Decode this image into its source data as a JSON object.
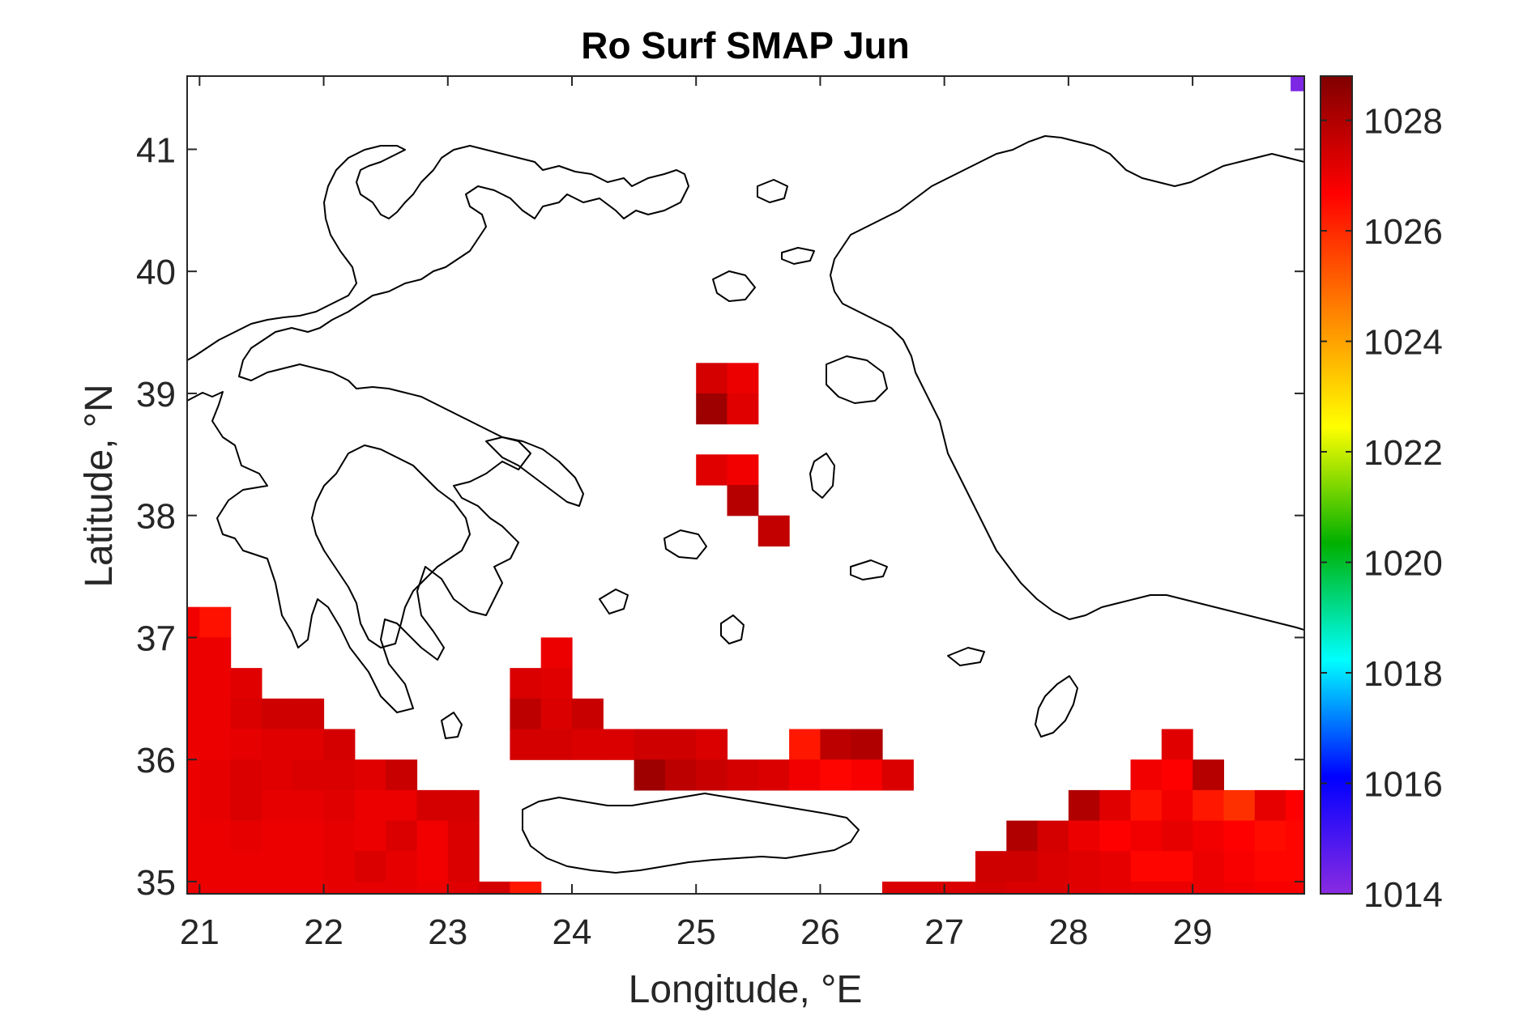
{
  "chart_data": {
    "type": "heatmap",
    "title": "Ro Surf SMAP Jun",
    "xlabel": "Longitude, °E",
    "ylabel": "Latitude, °N",
    "xlim": [
      20.9,
      29.9
    ],
    "ylim": [
      34.9,
      41.6
    ],
    "xticks": [
      21,
      22,
      23,
      24,
      25,
      26,
      27,
      28,
      29
    ],
    "yticks": [
      35,
      36,
      37,
      38,
      39,
      40,
      41
    ],
    "cell_size_deg": 0.25,
    "colorbar": {
      "range": [
        1014,
        1028.8
      ],
      "ticks": [
        1014,
        1016,
        1018,
        1020,
        1022,
        1024,
        1026,
        1028
      ],
      "colormap": "jet-like",
      "colors": [
        "#8a2be2",
        "#0000ff",
        "#00ffff",
        "#00b000",
        "#ffff00",
        "#ff8000",
        "#ff0000",
        "#800000"
      ]
    },
    "grid": false,
    "cells": [
      {
        "lon": 20.875,
        "lat": 37.125,
        "value": 1026.9
      },
      {
        "lon": 21.125,
        "lat": 37.125,
        "value": 1026.4
      },
      {
        "lon": 20.875,
        "lat": 36.875,
        "value": 1027.0
      },
      {
        "lon": 21.125,
        "lat": 36.875,
        "value": 1027.0
      },
      {
        "lon": 20.875,
        "lat": 36.625,
        "value": 1027.0
      },
      {
        "lon": 21.125,
        "lat": 36.625,
        "value": 1027.0
      },
      {
        "lon": 21.375,
        "lat": 36.625,
        "value": 1027.2
      },
      {
        "lon": 20.875,
        "lat": 36.375,
        "value": 1027.0
      },
      {
        "lon": 21.125,
        "lat": 36.375,
        "value": 1027.0
      },
      {
        "lon": 21.375,
        "lat": 36.375,
        "value": 1027.3
      },
      {
        "lon": 21.625,
        "lat": 36.375,
        "value": 1027.5
      },
      {
        "lon": 21.875,
        "lat": 36.375,
        "value": 1027.5
      },
      {
        "lon": 20.875,
        "lat": 36.125,
        "value": 1027.0
      },
      {
        "lon": 21.125,
        "lat": 36.125,
        "value": 1027.0
      },
      {
        "lon": 21.375,
        "lat": 36.125,
        "value": 1027.1
      },
      {
        "lon": 21.625,
        "lat": 36.125,
        "value": 1027.2
      },
      {
        "lon": 21.875,
        "lat": 36.125,
        "value": 1027.2
      },
      {
        "lon": 22.125,
        "lat": 36.125,
        "value": 1027.4
      },
      {
        "lon": 20.875,
        "lat": 35.875,
        "value": 1027.0
      },
      {
        "lon": 21.125,
        "lat": 35.875,
        "value": 1027.1
      },
      {
        "lon": 21.375,
        "lat": 35.875,
        "value": 1027.3
      },
      {
        "lon": 21.625,
        "lat": 35.875,
        "value": 1027.2
      },
      {
        "lon": 21.875,
        "lat": 35.875,
        "value": 1027.3
      },
      {
        "lon": 22.125,
        "lat": 35.875,
        "value": 1027.3
      },
      {
        "lon": 22.375,
        "lat": 35.875,
        "value": 1027.2
      },
      {
        "lon": 22.625,
        "lat": 35.875,
        "value": 1027.6
      },
      {
        "lon": 20.875,
        "lat": 35.625,
        "value": 1027.0
      },
      {
        "lon": 21.125,
        "lat": 35.625,
        "value": 1027.1
      },
      {
        "lon": 21.375,
        "lat": 35.625,
        "value": 1027.3
      },
      {
        "lon": 21.625,
        "lat": 35.625,
        "value": 1027.1
      },
      {
        "lon": 21.875,
        "lat": 35.625,
        "value": 1027.1
      },
      {
        "lon": 22.125,
        "lat": 35.625,
        "value": 1027.2
      },
      {
        "lon": 22.375,
        "lat": 35.625,
        "value": 1027.0
      },
      {
        "lon": 22.625,
        "lat": 35.625,
        "value": 1027.0
      },
      {
        "lon": 22.875,
        "lat": 35.625,
        "value": 1027.4
      },
      {
        "lon": 23.125,
        "lat": 35.625,
        "value": 1027.4
      },
      {
        "lon": 20.875,
        "lat": 35.375,
        "value": 1027.0
      },
      {
        "lon": 21.125,
        "lat": 35.375,
        "value": 1027.0
      },
      {
        "lon": 21.375,
        "lat": 35.375,
        "value": 1027.1
      },
      {
        "lon": 21.625,
        "lat": 35.375,
        "value": 1027.0
      },
      {
        "lon": 21.875,
        "lat": 35.375,
        "value": 1027.0
      },
      {
        "lon": 22.125,
        "lat": 35.375,
        "value": 1027.1
      },
      {
        "lon": 22.375,
        "lat": 35.375,
        "value": 1027.0
      },
      {
        "lon": 22.625,
        "lat": 35.375,
        "value": 1027.3
      },
      {
        "lon": 22.875,
        "lat": 35.375,
        "value": 1026.9
      },
      {
        "lon": 23.125,
        "lat": 35.375,
        "value": 1027.3
      },
      {
        "lon": 20.875,
        "lat": 35.125,
        "value": 1027.0
      },
      {
        "lon": 21.125,
        "lat": 35.125,
        "value": 1027.0
      },
      {
        "lon": 21.375,
        "lat": 35.125,
        "value": 1027.0
      },
      {
        "lon": 21.625,
        "lat": 35.125,
        "value": 1027.0
      },
      {
        "lon": 21.875,
        "lat": 35.125,
        "value": 1027.0
      },
      {
        "lon": 22.125,
        "lat": 35.125,
        "value": 1027.1
      },
      {
        "lon": 22.375,
        "lat": 35.125,
        "value": 1027.3
      },
      {
        "lon": 22.625,
        "lat": 35.125,
        "value": 1027.1
      },
      {
        "lon": 22.875,
        "lat": 35.125,
        "value": 1026.9
      },
      {
        "lon": 23.125,
        "lat": 35.125,
        "value": 1027.3
      },
      {
        "lon": 20.875,
        "lat": 34.875,
        "value": 1027.0
      },
      {
        "lon": 21.125,
        "lat": 34.875,
        "value": 1027.0
      },
      {
        "lon": 21.375,
        "lat": 34.875,
        "value": 1027.0
      },
      {
        "lon": 21.625,
        "lat": 34.875,
        "value": 1027.0
      },
      {
        "lon": 21.875,
        "lat": 34.875,
        "value": 1027.0
      },
      {
        "lon": 22.125,
        "lat": 34.875,
        "value": 1027.1
      },
      {
        "lon": 22.375,
        "lat": 34.875,
        "value": 1027.1
      },
      {
        "lon": 22.625,
        "lat": 34.875,
        "value": 1027.1
      },
      {
        "lon": 22.875,
        "lat": 34.875,
        "value": 1027.0
      },
      {
        "lon": 23.125,
        "lat": 34.875,
        "value": 1027.2
      },
      {
        "lon": 23.375,
        "lat": 34.875,
        "value": 1027.4
      },
      {
        "lon": 23.625,
        "lat": 34.875,
        "value": 1026.3
      },
      {
        "lon": 25.125,
        "lat": 39.125,
        "value": 1027.4
      },
      {
        "lon": 25.375,
        "lat": 39.125,
        "value": 1027.0
      },
      {
        "lon": 25.125,
        "lat": 38.875,
        "value": 1028.3
      },
      {
        "lon": 25.375,
        "lat": 38.875,
        "value": 1027.2
      },
      {
        "lon": 25.125,
        "lat": 38.375,
        "value": 1027.2
      },
      {
        "lon": 25.375,
        "lat": 38.375,
        "value": 1026.9
      },
      {
        "lon": 25.375,
        "lat": 38.125,
        "value": 1027.9
      },
      {
        "lon": 25.625,
        "lat": 37.875,
        "value": 1027.7
      },
      {
        "lon": 23.875,
        "lat": 36.875,
        "value": 1027.0
      },
      {
        "lon": 23.625,
        "lat": 36.625,
        "value": 1027.3
      },
      {
        "lon": 23.875,
        "lat": 36.625,
        "value": 1027.2
      },
      {
        "lon": 23.625,
        "lat": 36.375,
        "value": 1027.8
      },
      {
        "lon": 23.875,
        "lat": 36.375,
        "value": 1027.3
      },
      {
        "lon": 24.125,
        "lat": 36.375,
        "value": 1027.6
      },
      {
        "lon": 23.625,
        "lat": 36.125,
        "value": 1027.4
      },
      {
        "lon": 23.875,
        "lat": 36.125,
        "value": 1027.4
      },
      {
        "lon": 24.125,
        "lat": 36.125,
        "value": 1027.3
      },
      {
        "lon": 24.375,
        "lat": 36.125,
        "value": 1027.3
      },
      {
        "lon": 24.625,
        "lat": 36.125,
        "value": 1027.5
      },
      {
        "lon": 24.875,
        "lat": 36.125,
        "value": 1027.5
      },
      {
        "lon": 25.125,
        "lat": 36.125,
        "value": 1027.3
      },
      {
        "lon": 25.875,
        "lat": 36.125,
        "value": 1026.3
      },
      {
        "lon": 26.125,
        "lat": 36.125,
        "value": 1027.8
      },
      {
        "lon": 26.375,
        "lat": 36.125,
        "value": 1028.0
      },
      {
        "lon": 24.625,
        "lat": 35.875,
        "value": 1028.3
      },
      {
        "lon": 24.875,
        "lat": 35.875,
        "value": 1027.8
      },
      {
        "lon": 25.125,
        "lat": 35.875,
        "value": 1027.6
      },
      {
        "lon": 25.375,
        "lat": 35.875,
        "value": 1027.4
      },
      {
        "lon": 25.625,
        "lat": 35.875,
        "value": 1027.3
      },
      {
        "lon": 25.875,
        "lat": 35.875,
        "value": 1026.9
      },
      {
        "lon": 26.125,
        "lat": 35.875,
        "value": 1026.6
      },
      {
        "lon": 26.375,
        "lat": 35.875,
        "value": 1026.8
      },
      {
        "lon": 26.625,
        "lat": 35.875,
        "value": 1027.3
      },
      {
        "lon": 28.875,
        "lat": 36.125,
        "value": 1027.2
      },
      {
        "lon": 28.625,
        "lat": 35.875,
        "value": 1026.9
      },
      {
        "lon": 28.875,
        "lat": 35.875,
        "value": 1026.7
      },
      {
        "lon": 29.125,
        "lat": 35.875,
        "value": 1027.9
      },
      {
        "lon": 28.125,
        "lat": 35.625,
        "value": 1028.0
      },
      {
        "lon": 28.375,
        "lat": 35.625,
        "value": 1027.2
      },
      {
        "lon": 28.625,
        "lat": 35.625,
        "value": 1026.4
      },
      {
        "lon": 28.875,
        "lat": 35.625,
        "value": 1026.9
      },
      {
        "lon": 29.125,
        "lat": 35.625,
        "value": 1026.3
      },
      {
        "lon": 29.375,
        "lat": 35.625,
        "value": 1025.9
      },
      {
        "lon": 29.625,
        "lat": 35.625,
        "value": 1027.1
      },
      {
        "lon": 29.875,
        "lat": 35.625,
        "value": 1026.7
      },
      {
        "lon": 27.625,
        "lat": 35.375,
        "value": 1028.0
      },
      {
        "lon": 27.875,
        "lat": 35.375,
        "value": 1027.4
      },
      {
        "lon": 28.125,
        "lat": 35.375,
        "value": 1027.0
      },
      {
        "lon": 28.375,
        "lat": 35.375,
        "value": 1026.7
      },
      {
        "lon": 28.625,
        "lat": 35.375,
        "value": 1026.9
      },
      {
        "lon": 28.875,
        "lat": 35.375,
        "value": 1027.1
      },
      {
        "lon": 29.125,
        "lat": 35.375,
        "value": 1026.9
      },
      {
        "lon": 29.375,
        "lat": 35.375,
        "value": 1026.7
      },
      {
        "lon": 29.625,
        "lat": 35.375,
        "value": 1026.5
      },
      {
        "lon": 29.875,
        "lat": 35.375,
        "value": 1026.6
      },
      {
        "lon": 27.375,
        "lat": 35.125,
        "value": 1027.5
      },
      {
        "lon": 27.625,
        "lat": 35.125,
        "value": 1027.5
      },
      {
        "lon": 27.875,
        "lat": 35.125,
        "value": 1027.3
      },
      {
        "lon": 28.125,
        "lat": 35.125,
        "value": 1027.2
      },
      {
        "lon": 28.375,
        "lat": 35.125,
        "value": 1027.1
      },
      {
        "lon": 28.625,
        "lat": 35.125,
        "value": 1026.6
      },
      {
        "lon": 28.875,
        "lat": 35.125,
        "value": 1026.6
      },
      {
        "lon": 29.125,
        "lat": 35.125,
        "value": 1027.0
      },
      {
        "lon": 29.375,
        "lat": 35.125,
        "value": 1026.8
      },
      {
        "lon": 29.625,
        "lat": 35.125,
        "value": 1026.6
      },
      {
        "lon": 29.875,
        "lat": 35.125,
        "value": 1026.6
      },
      {
        "lon": 26.625,
        "lat": 34.875,
        "value": 1027.3
      },
      {
        "lon": 26.875,
        "lat": 34.875,
        "value": 1027.3
      },
      {
        "lon": 27.125,
        "lat": 34.875,
        "value": 1027.3
      },
      {
        "lon": 27.375,
        "lat": 34.875,
        "value": 1027.4
      },
      {
        "lon": 27.625,
        "lat": 34.875,
        "value": 1027.3
      },
      {
        "lon": 27.875,
        "lat": 34.875,
        "value": 1027.3
      },
      {
        "lon": 28.125,
        "lat": 34.875,
        "value": 1027.2
      },
      {
        "lon": 28.375,
        "lat": 34.875,
        "value": 1027.1
      },
      {
        "lon": 28.625,
        "lat": 34.875,
        "value": 1027.0
      },
      {
        "lon": 28.875,
        "lat": 34.875,
        "value": 1027.0
      },
      {
        "lon": 29.125,
        "lat": 34.875,
        "value": 1027.0
      },
      {
        "lon": 29.375,
        "lat": 34.875,
        "value": 1026.9
      },
      {
        "lon": 29.625,
        "lat": 34.875,
        "value": 1026.8
      },
      {
        "lon": 29.875,
        "lat": 34.875,
        "value": 1026.8
      },
      {
        "lon": 29.85,
        "lat": 41.54,
        "value": 1014.2
      }
    ]
  }
}
